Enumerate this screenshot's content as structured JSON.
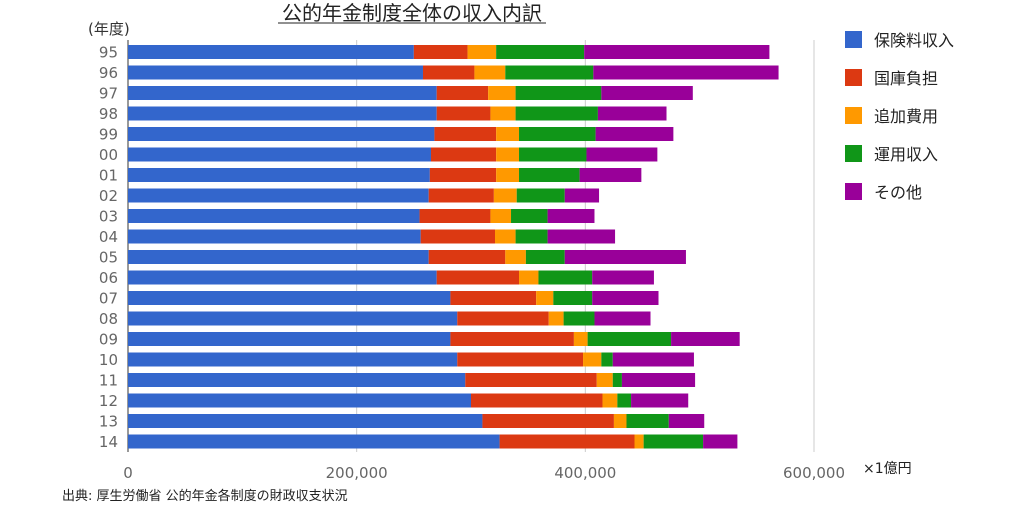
{
  "chart_data": {
    "type": "bar",
    "orientation": "horizontal",
    "stacked": true,
    "title": "公的年金制度全体の収入内訳",
    "ylabel": "(年度)",
    "unit_label": "×1億円",
    "source": "出典: 厚生労働省 公的年金各制度の財政収支状況",
    "categories": [
      "95",
      "96",
      "97",
      "98",
      "99",
      "00",
      "01",
      "02",
      "03",
      "04",
      "05",
      "06",
      "07",
      "08",
      "09",
      "10",
      "11",
      "12",
      "13",
      "14"
    ],
    "xlim": [
      0,
      600000
    ],
    "xticks": [
      0,
      200000,
      400000,
      600000
    ],
    "xtick_labels": [
      "0",
      "200,000",
      "400,000",
      "600,000"
    ],
    "grid": true,
    "legend_position": "right",
    "series": [
      {
        "name": "保険料収入",
        "color": "#3366cc",
        "values": [
          250000,
          258000,
          270000,
          270000,
          268000,
          265000,
          264000,
          263000,
          255000,
          256000,
          263000,
          270000,
          282000,
          288000,
          282000,
          288000,
          295000,
          300000,
          310000,
          325000
        ]
      },
      {
        "name": "国庫負担",
        "color": "#dc3912",
        "values": [
          47000,
          45000,
          45000,
          47000,
          54000,
          57000,
          58000,
          57000,
          62000,
          65000,
          67000,
          72000,
          75000,
          80000,
          108000,
          110000,
          115000,
          115000,
          115000,
          118000
        ]
      },
      {
        "name": "追加費用",
        "color": "#ff9900",
        "values": [
          25000,
          27000,
          24000,
          22000,
          20000,
          20000,
          20000,
          20000,
          18000,
          18000,
          18000,
          17000,
          15000,
          13000,
          12000,
          16000,
          14000,
          13000,
          11000,
          8000
        ]
      },
      {
        "name": "運用収入",
        "color": "#109618",
        "values": [
          77000,
          77000,
          75000,
          72000,
          67000,
          59000,
          53000,
          42000,
          32000,
          28000,
          34000,
          47000,
          34000,
          27000,
          73000,
          10000,
          8000,
          12000,
          37000,
          52000
        ]
      },
      {
        "name": "その他",
        "color": "#990099",
        "values": [
          162000,
          162000,
          80000,
          60000,
          68000,
          62000,
          54000,
          30000,
          41000,
          59000,
          106000,
          54000,
          58000,
          49000,
          60000,
          71000,
          64000,
          50000,
          31000,
          30000
        ]
      }
    ]
  }
}
